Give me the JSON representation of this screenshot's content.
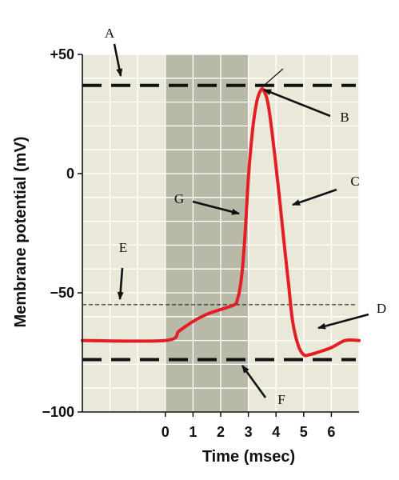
{
  "chart_data": {
    "type": "line",
    "title": "",
    "xlabel": "Time (msec)",
    "ylabel": "Membrane potential (mV)",
    "xlim": [
      -3.0,
      7.0
    ],
    "ylim": [
      -100,
      50
    ],
    "x_ticks": [
      "0",
      "1",
      "2",
      "3",
      "4",
      "5",
      "6"
    ],
    "y_ticks": [
      "+50",
      "0",
      "−50",
      "−100"
    ],
    "grid": true,
    "shaded_interval": [
      0,
      3
    ],
    "reference_lines": [
      {
        "label": "A",
        "y": 37,
        "style": "thick-dashed"
      },
      {
        "label": "E",
        "y": -55,
        "style": "thin-dashed"
      },
      {
        "label": "F",
        "y": -78,
        "style": "thick-dashed"
      }
    ],
    "series": [
      {
        "color": "#e41e25",
        "x": [
          -3.0,
          0,
          0.5,
          1,
          1.5,
          2,
          2.5,
          2.6,
          2.7,
          2.8,
          2.9,
          3.0,
          3.15,
          3.3,
          3.45,
          3.55,
          3.7,
          3.85,
          4.0,
          4.15,
          4.3,
          4.45,
          4.6,
          4.8,
          5.0,
          5.2,
          5.5,
          6.0,
          6.5,
          7.0
        ],
        "y": [
          -70,
          -70,
          -66,
          -62,
          -59,
          -57,
          -55,
          -53,
          -48,
          -38,
          -22,
          -2,
          18,
          30,
          35,
          35,
          30,
          18,
          3,
          -13,
          -30,
          -46,
          -62,
          -72,
          -76,
          -76,
          -75,
          -73,
          -70,
          -70
        ]
      }
    ],
    "annotations": [
      {
        "label": "A",
        "points_to": "upper dashed line (threshold of peak)"
      },
      {
        "label": "B",
        "points_to": "peak"
      },
      {
        "label": "C",
        "points_to": "falling phase"
      },
      {
        "label": "D",
        "points_to": "after-hyperpolarization"
      },
      {
        "label": "E",
        "points_to": "threshold dashed line"
      },
      {
        "label": "F",
        "points_to": "lower dashed line"
      },
      {
        "label": "G",
        "points_to": "rising phase"
      }
    ]
  },
  "colors": {
    "plot_bg": "#eae8d9",
    "shade": "#b8b9a6",
    "grid": "#ffffff",
    "curve": "#e41e25",
    "dash": "#111111"
  }
}
